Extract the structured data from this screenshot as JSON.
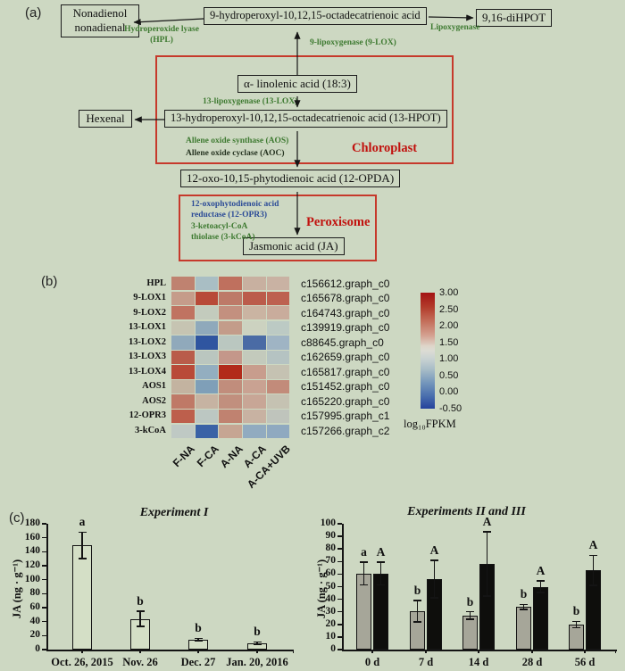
{
  "figure": {
    "background": "#cdd8c2"
  },
  "panel_a": {
    "label": "(a)",
    "boxes": {
      "nonadienol": "Nonadienol\nnonadienal",
      "hydroperoxyl9": "9-hydroperoxyl-10,12,15-octadecatrienoic acid",
      "dihpot": "9,16-diHPOT",
      "linolenic": "α- linolenic acid (18:3)",
      "hexenal": "Hexenal",
      "hpot13": "13-hydroperoxyl-10,12,15-octadecatrienoic acid (13-HPOT)",
      "opda": "12-oxo-10,15-phytodienoic acid (12-OPDA)",
      "ja": "Jasmonic acid (JA)"
    },
    "enzymes": {
      "hpl": "Hydroperoxide lyase\n(HPL)",
      "lipoxygenase": "Lipoxygenase",
      "lox9": "9-lipoxygenase (9-LOX)",
      "lox13": "13-lipoxygenase (13-LOX)",
      "aos": "Allene oxide synthase (AOS)",
      "aoc": "Allene oxide cyclase (AOC)",
      "opr3": "12-oxophytodienoic acid\nreductase (12-OPR3)",
      "kcoa": "3-ketoacyl-CoA\nthiolase (3-kCoA)"
    },
    "compartments": {
      "chloroplast": "Chloroplast",
      "peroxisome": "Peroxisome"
    },
    "colors": {
      "enzyme_green": "#3e7a31",
      "enzyme_blue": "#2b4b97",
      "compartment_red": "#c1120e",
      "outline_red": "#c6392b"
    }
  },
  "panel_b": {
    "label": "(b)"
  },
  "panel_c": {
    "label": "(c)"
  },
  "chart_data": [
    {
      "type": "heatmap",
      "rows": [
        "HPL",
        "9-LOX1",
        "9-LOX2",
        "13-LOX1",
        "13-LOX2",
        "13-LOX3",
        "13-LOX4",
        "AOS1",
        "AOS2",
        "12-OPR3",
        "3-kCoA"
      ],
      "row_ids": [
        "c156612.graph_c0",
        "c165678.graph_c0",
        "c164743.graph_c0",
        "c139919.graph_c0",
        "c88645.graph_c0",
        "c162659.graph_c0",
        "c165817.graph_c0",
        "c151452.graph_c0",
        "c165220.graph_c0",
        "c157995.graph_c1",
        "c157266.graph_c2"
      ],
      "columns": [
        "F-NA",
        "F-CA",
        "A-NA",
        "A-CA",
        "A-CA+UVB"
      ],
      "values": [
        [
          2.2,
          1.2,
          2.3,
          1.7,
          1.7
        ],
        [
          1.9,
          2.7,
          2.2,
          2.5,
          2.4
        ],
        [
          2.3,
          1.5,
          2.0,
          1.7,
          1.8
        ],
        [
          1.6,
          1.0,
          1.9,
          1.5,
          1.4
        ],
        [
          1.1,
          0.0,
          1.4,
          0.4,
          1.2
        ],
        [
          2.4,
          1.4,
          1.9,
          1.5,
          1.4
        ],
        [
          2.7,
          1.1,
          2.9,
          1.8,
          1.5
        ],
        [
          1.7,
          0.9,
          2.0,
          1.8,
          2.1
        ],
        [
          2.2,
          1.7,
          2.0,
          1.8,
          1.5
        ],
        [
          2.4,
          1.4,
          2.2,
          1.7,
          1.5
        ],
        [
          1.4,
          0.3,
          1.8,
          1.1,
          1.1
        ]
      ],
      "cell_colors": [
        [
          "#bf8270",
          "#a9bec4",
          "#bf705e",
          "#c8b0a0",
          "#c9b2a3"
        ],
        [
          "#c59c8a",
          "#b84a38",
          "#bd7a68",
          "#bb5c4b",
          "#bd6150"
        ],
        [
          "#c07361",
          "#c3cbbd",
          "#c3907f",
          "#cab4a2",
          "#c9ac9c"
        ],
        [
          "#c6c4b2",
          "#8fa9bb",
          "#c39c8a",
          "#ccd2c0",
          "#bccac4"
        ],
        [
          "#90a9bb",
          "#2f55a0",
          "#bac7c0",
          "#4a6ba5",
          "#9fb4c4"
        ],
        [
          "#b95c4a",
          "#bac6bf",
          "#c4978a",
          "#c3cabc",
          "#b5c3c2"
        ],
        [
          "#b94a38",
          "#93aec0",
          "#b22a1a",
          "#c89d8d",
          "#c5c2b2"
        ],
        [
          "#c3b3a0",
          "#7f9fb8",
          "#c18d7c",
          "#c9a292",
          "#c28b7a"
        ],
        [
          "#bf7967",
          "#c6b3a2",
          "#c18f7e",
          "#c8a696",
          "#c5c2b2"
        ],
        [
          "#bd5f4c",
          "#bcc7c2",
          "#c08270",
          "#c8b2a2",
          "#bfc4bc"
        ],
        [
          "#bfc9c4",
          "#3a62a6",
          "#c6a593",
          "#91abc0",
          "#8fa9c0"
        ]
      ],
      "colorbar": {
        "label": "log₁₀FPKM",
        "ticks": [
          "3.00",
          "2.50",
          "2.00",
          "1.50",
          "1.00",
          "0.50",
          "0.00",
          "-0.50"
        ],
        "range": [
          -0.5,
          3.0
        ]
      }
    },
    {
      "type": "bar",
      "title": "Experiment I",
      "ylabel": "JA (ng · g⁻¹)",
      "categories": [
        "Oct. 26, 2015",
        "Nov. 26",
        "Dec. 27",
        "Jan. 20, 2016"
      ],
      "values": [
        149,
        44,
        14,
        9
      ],
      "errors": [
        19,
        11,
        2,
        2
      ],
      "letters": [
        "a",
        "b",
        "b",
        "b"
      ],
      "ylim": [
        0,
        180
      ],
      "ytick_step": 20,
      "bar_style": "open"
    },
    {
      "type": "bar",
      "title": "Experiments II and III",
      "ylabel": "JA (ng · g⁻¹)",
      "categories": [
        "0 d",
        "7 d",
        "14 d",
        "28 d",
        "56 d"
      ],
      "series": [
        {
          "name": "gray",
          "color": "#a6a699",
          "values": [
            60.5,
            30.5,
            27,
            34,
            20
          ],
          "errors": [
            9,
            8.5,
            3,
            2,
            2.5
          ],
          "letters": [
            "a",
            "b",
            "b",
            "b",
            "b"
          ]
        },
        {
          "name": "black",
          "color": "#0e0e0c",
          "values": [
            60.5,
            56,
            68,
            50,
            63
          ],
          "errors": [
            9,
            15,
            25.5,
            4.5,
            12
          ],
          "letters": [
            "A",
            "A",
            "A",
            "A",
            "A"
          ]
        }
      ],
      "ylim": [
        0,
        100
      ],
      "ytick_step": 10
    }
  ]
}
